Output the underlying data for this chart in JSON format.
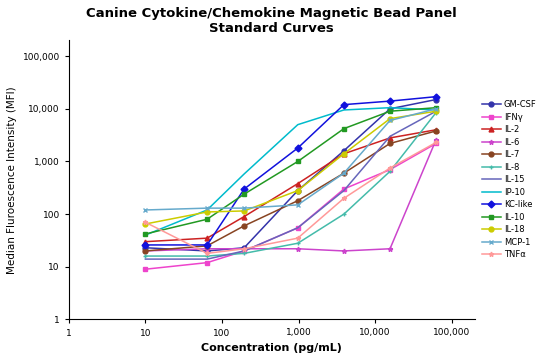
{
  "title": "Canine Cytokine/Chemokine Magnetic Bead Panel\nStandard Curves",
  "xlabel": "Concentration (pg/mL)",
  "ylabel": "Median Fluroescence Intensity (MFI)",
  "series": [
    {
      "name": "GM-CSF",
      "color": "#3333AA",
      "marker": "o",
      "linestyle": "-",
      "x": [
        10,
        64,
        195,
        977,
        3906,
        15625,
        62500
      ],
      "y": [
        23,
        20,
        23,
        280,
        1600,
        10000,
        15000
      ]
    },
    {
      "name": "IFNγ",
      "color": "#EE44CC",
      "marker": "s",
      "linestyle": "-",
      "x": [
        10,
        64,
        195,
        977,
        3906,
        15625,
        62500
      ],
      "y": [
        9,
        12,
        20,
        55,
        300,
        700,
        2200
      ]
    },
    {
      "name": "IL-2",
      "color": "#CC2222",
      "marker": "^",
      "linestyle": "-",
      "x": [
        10,
        64,
        195,
        977,
        3906,
        15625,
        62500
      ],
      "y": [
        30,
        35,
        90,
        380,
        1400,
        2800,
        4000
      ]
    },
    {
      "name": "IL-6",
      "color": "#CC44CC",
      "marker": "*",
      "linestyle": "-",
      "x": [
        10,
        64,
        195,
        977,
        3906,
        15625,
        62500
      ],
      "y": [
        20,
        22,
        22,
        22,
        20,
        22,
        2600
      ]
    },
    {
      "name": "IL-7",
      "color": "#884422",
      "marker": "o",
      "linestyle": "-",
      "x": [
        10,
        64,
        195,
        977,
        3906,
        15625,
        62500
      ],
      "y": [
        20,
        25,
        60,
        180,
        600,
        2200,
        3800
      ]
    },
    {
      "name": "IL-8",
      "color": "#44BBAA",
      "marker": "+",
      "linestyle": "-",
      "x": [
        10,
        64,
        195,
        977,
        3906,
        15625,
        62500
      ],
      "y": [
        16,
        16,
        18,
        28,
        100,
        650,
        8500
      ]
    },
    {
      "name": "IL-15",
      "color": "#6666BB",
      "marker": "None",
      "linestyle": "-",
      "x": [
        10,
        64,
        195,
        977,
        3906,
        15625,
        62500
      ],
      "y": [
        14,
        14,
        20,
        55,
        280,
        3000,
        9000
      ]
    },
    {
      "name": "IP-10",
      "color": "#00BBCC",
      "marker": "None",
      "linestyle": "-",
      "x": [
        10,
        64,
        195,
        977,
        3906,
        15625,
        62500
      ],
      "y": [
        40,
        120,
        580,
        5000,
        9500,
        10500,
        9500
      ]
    },
    {
      "name": "KC-like",
      "color": "#1111DD",
      "marker": "D",
      "linestyle": "-",
      "x": [
        10,
        64,
        195,
        977,
        3906,
        15625,
        62500
      ],
      "y": [
        26,
        26,
        300,
        1800,
        12000,
        14000,
        17000
      ]
    },
    {
      "name": "IL-10",
      "color": "#229922",
      "marker": "s",
      "linestyle": "-",
      "x": [
        10,
        64,
        195,
        977,
        3906,
        15625,
        62500
      ],
      "y": [
        42,
        80,
        240,
        1000,
        4200,
        9000,
        10500
      ]
    },
    {
      "name": "IL-18",
      "color": "#CCCC00",
      "marker": "o",
      "linestyle": "-",
      "x": [
        10,
        64,
        195,
        977,
        3906,
        15625,
        62500
      ],
      "y": [
        65,
        110,
        115,
        280,
        1400,
        6500,
        9000
      ]
    },
    {
      "name": "MCP-1",
      "color": "#66AACC",
      "marker": "x",
      "linestyle": "-",
      "x": [
        10,
        64,
        195,
        977,
        3906,
        15625,
        62500
      ],
      "y": [
        120,
        130,
        130,
        150,
        600,
        6000,
        10000
      ]
    },
    {
      "name": "TNFα",
      "color": "#FF9999",
      "marker": "*",
      "linestyle": "-",
      "x": [
        10,
        64,
        195,
        977,
        3906,
        15625,
        62500
      ],
      "y": [
        70,
        18,
        22,
        35,
        200,
        750,
        2300
      ]
    }
  ]
}
